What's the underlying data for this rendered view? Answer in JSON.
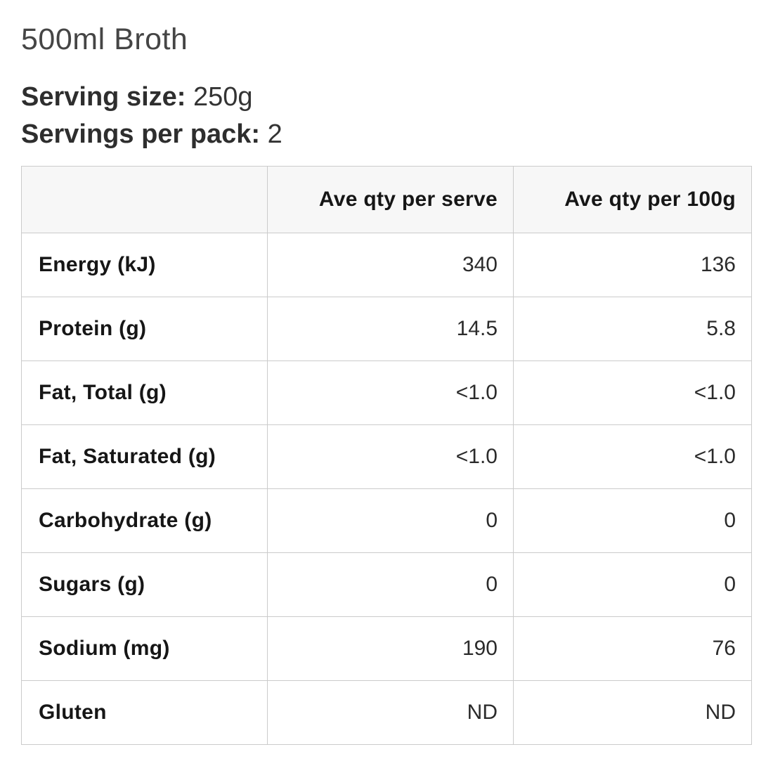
{
  "header": {
    "product_title": "500ml Broth"
  },
  "serving": {
    "size_label": "Serving size:",
    "size_value": "250g",
    "pack_label": "Servings per pack:",
    "pack_value": "2"
  },
  "nutrition_table": {
    "columns": [
      "",
      "Ave qty per serve",
      "Ave qty per 100g"
    ],
    "rows": [
      {
        "label": "Energy (kJ)",
        "per_serve": "340",
        "per_100g": "136"
      },
      {
        "label": "Protein (g)",
        "per_serve": "14.5",
        "per_100g": "5.8"
      },
      {
        "label": "Fat, Total (g)",
        "per_serve": "<1.0",
        "per_100g": "<1.0"
      },
      {
        "label": "Fat, Saturated (g)",
        "per_serve": "<1.0",
        "per_100g": "<1.0"
      },
      {
        "label": "Carbohydrate (g)",
        "per_serve": "0",
        "per_100g": "0"
      },
      {
        "label": "Sugars (g)",
        "per_serve": "0",
        "per_100g": "0"
      },
      {
        "label": "Sodium (mg)",
        "per_serve": "190",
        "per_100g": "76"
      },
      {
        "label": "Gluten",
        "per_serve": "ND",
        "per_100g": "ND"
      }
    ]
  },
  "colors": {
    "header_bg": "#f7f7f7",
    "border": "#cbcbcb",
    "label_text": "#161616",
    "value_text": "#2b2b2b",
    "title_text": "#454545"
  }
}
